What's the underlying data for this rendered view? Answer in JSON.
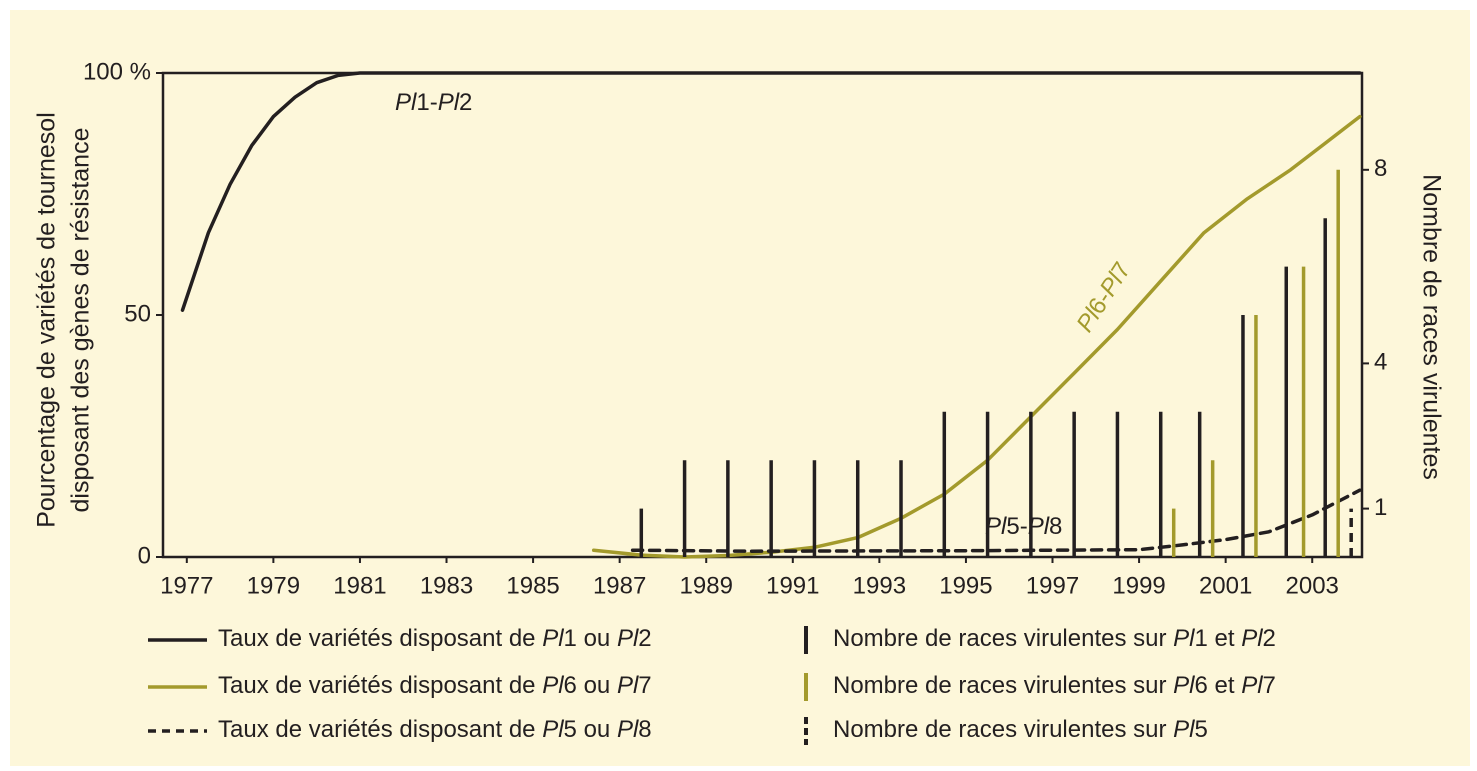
{
  "chart_data": {
    "type": "line",
    "ylabel": [
      "Pourcentage de variétés de tournesol",
      "disposant des gènes de résistance"
    ],
    "y2label": "Nombre de races virulentes",
    "xlim": [
      1976.45,
      2004.15
    ],
    "xticks": [
      1977,
      1979,
      1981,
      1983,
      1985,
      1987,
      1989,
      1991,
      1993,
      1995,
      1997,
      1999,
      2001,
      2003
    ],
    "ylim": [
      0,
      100
    ],
    "yticks": [
      0,
      50,
      {
        "value": 100,
        "label": "100 %"
      }
    ],
    "y2lim": [
      0,
      10
    ],
    "y2ticks": [
      1,
      4,
      8
    ],
    "annotations": [
      "Pl1-Pl2",
      "Pl6-Pl7",
      "Pl5-Pl8"
    ],
    "series": [
      {
        "name": "Taux de variétés disposant de Pl1 ou Pl2",
        "type": "line",
        "color": "#231f20",
        "x": [
          1976.9,
          1977.5,
          1978,
          1978.5,
          1979,
          1979.5,
          1980,
          1980.5,
          1981,
          2004.1
        ],
        "values": [
          51,
          67,
          77,
          85,
          91,
          95,
          98,
          99.5,
          100,
          100
        ]
      },
      {
        "name": "Taux de variétés disposant de Pl6 ou Pl7",
        "type": "line",
        "color": "#a39a2c",
        "x": [
          1986.4,
          1987.5,
          1988.5,
          1989.5,
          1990.5,
          1991.5,
          1992.5,
          1993.5,
          1994.5,
          1995.5,
          1996.5,
          1997.5,
          1998.5,
          1999.5,
          2000.5,
          2001.5,
          2002.5,
          2003.3,
          2004.1
        ],
        "values": [
          1.4,
          0.4,
          0,
          0.3,
          1,
          2,
          4,
          8,
          13,
          20,
          29,
          38,
          47,
          57,
          67,
          74,
          80,
          85.5,
          91
        ]
      },
      {
        "name": "Taux de variétés disposant de Pl5 ou Pl8",
        "type": "line",
        "dashed": true,
        "color": "#231f20",
        "x": [
          1987.3,
          1990,
          1995,
          1999,
          2000,
          2001,
          2002,
          2003,
          2004.1
        ],
        "values": [
          1.4,
          1.2,
          1.3,
          1.5,
          2.5,
          3.6,
          5.2,
          8.7,
          13.8
        ]
      },
      {
        "name": "Nombre de races virulentes sur Pl1 et Pl2",
        "type": "bar",
        "axis": "y2",
        "color": "#231f20",
        "x": [
          1987.5,
          1988.5,
          1989.5,
          1990.5,
          1991.5,
          1992.5,
          1993.5,
          1994.5,
          1995.5,
          1996.5,
          1997.5,
          1998.5,
          1999.5,
          2000.4,
          2001.4,
          2002.4,
          2003.3
        ],
        "values": [
          1,
          2,
          2,
          2,
          2,
          2,
          2,
          3,
          3,
          3,
          3,
          3,
          3,
          3,
          5,
          6,
          7
        ]
      },
      {
        "name": "Nombre de races virulentes sur Pl6 et Pl7",
        "type": "bar",
        "axis": "y2",
        "color": "#a39a2c",
        "x": [
          1999.8,
          2000.7,
          2001.7,
          2002.8,
          2003.6
        ],
        "values": [
          1,
          2,
          5,
          6,
          8
        ]
      },
      {
        "name": "Nombre de races virulentes sur Pl5",
        "type": "bar",
        "axis": "y2",
        "dashed": true,
        "color": "#231f20",
        "x": [
          2003.9
        ],
        "values": [
          1
        ]
      }
    ]
  }
}
